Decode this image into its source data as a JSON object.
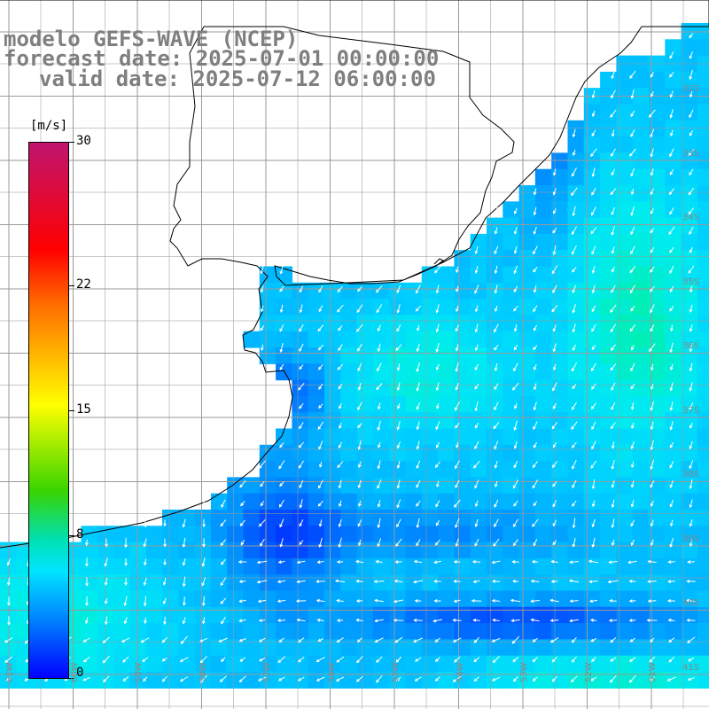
{
  "header": {
    "line1": "modelo GEFS-WAVE (NCEP)",
    "line2": "forecast date: 2025-07-01 00:00:00",
    "line3": "valid date: 2025-07-12 06:00:00"
  },
  "colorbar": {
    "unit": "[m/s]",
    "ticks": [
      "30",
      "22",
      "15",
      "8",
      "0"
    ],
    "tick_values": [
      30,
      22,
      15,
      8,
      0
    ],
    "colors": [
      "#c0146e",
      "#ff0000",
      "#ff6a00",
      "#ffff00",
      "#39d400",
      "#00e0b0",
      "#00e5ff",
      "#0078ff",
      "#0000ff"
    ]
  },
  "map": {
    "lat_labels": [
      "32S",
      "33S",
      "34S",
      "35S",
      "36S",
      "37S",
      "38S",
      "39S",
      "40S",
      "41S"
    ],
    "lon_labels": [
      "61W",
      "60W",
      "59W",
      "58W",
      "57W",
      "56W",
      "55W",
      "54W",
      "53W",
      "52W",
      "51W"
    ],
    "land_color": "#ffffff",
    "grid_color": "#9a9a9a",
    "coast_color": "#000000",
    "arrow_color": "#ffffff"
  }
}
